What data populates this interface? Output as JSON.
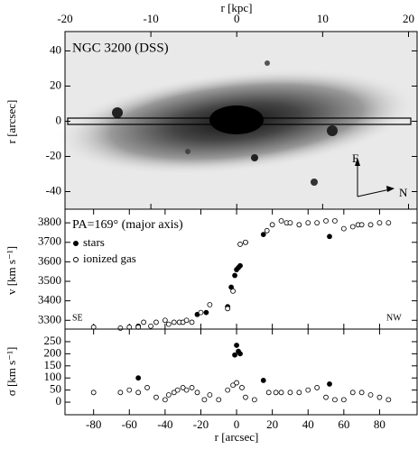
{
  "chart_data": [
    {
      "type": "image",
      "title": "NGC 3200 (DSS)",
      "x_label": "r [kpc]",
      "y_label": "r [arcsec]",
      "xlim": [
        -20,
        21
      ],
      "xticks": [
        -20,
        -10,
        0,
        10,
        20
      ],
      "ylim": [
        -50,
        51
      ],
      "yticks": [
        -40,
        -20,
        0,
        20,
        40
      ],
      "annotations": [
        "E",
        "N"
      ]
    },
    {
      "type": "scatter",
      "title": "PA=169° (major axis)",
      "y_label": "v [km s⁻¹]",
      "xlim": [
        -96,
        101
      ],
      "xticks": [
        -80,
        -60,
        -40,
        -20,
        0,
        20,
        40,
        60,
        80
      ],
      "ylim": [
        3255,
        3870
      ],
      "yticks": [
        3300,
        3400,
        3500,
        3600,
        3700,
        3800
      ],
      "annotations": [
        "SE",
        "NW"
      ],
      "series": [
        {
          "name": "stars",
          "color": "#000000",
          "filled": true,
          "x": [
            -55,
            -22,
            -17,
            -5,
            -3,
            -1,
            0,
            1,
            2,
            5,
            15,
            52
          ],
          "values": [
            3270,
            3330,
            3340,
            3370,
            3470,
            3530,
            3560,
            3570,
            3580,
            3700,
            3740,
            3730
          ]
        },
        {
          "name": "ionized gas",
          "color": "#000000",
          "filled": false,
          "x": [
            -80,
            -65,
            -60,
            -55,
            -52,
            -48,
            -45,
            -40,
            -38,
            -35,
            -32,
            -30,
            -28,
            -25,
            -20,
            -15,
            -5,
            -2,
            2,
            5,
            17,
            20,
            25,
            28,
            30,
            35,
            40,
            45,
            50,
            55,
            60,
            65,
            68,
            70,
            75,
            80,
            85
          ],
          "values": [
            3265,
            3260,
            3265,
            3265,
            3290,
            3270,
            3290,
            3300,
            3280,
            3290,
            3290,
            3290,
            3300,
            3290,
            3340,
            3380,
            3360,
            3450,
            3690,
            3700,
            3760,
            3790,
            3810,
            3800,
            3800,
            3790,
            3800,
            3800,
            3810,
            3810,
            3770,
            3780,
            3790,
            3790,
            3790,
            3800,
            3800
          ]
        }
      ]
    },
    {
      "type": "scatter",
      "x_label": "r [arcsec]",
      "y_label": "σ [km s⁻¹]",
      "xlim": [
        -96,
        101
      ],
      "xticks": [
        -80,
        -60,
        -40,
        -20,
        0,
        20,
        40,
        60,
        80
      ],
      "ylim": [
        -52,
        302
      ],
      "yticks": [
        0,
        50,
        100,
        150,
        200,
        250
      ],
      "series": [
        {
          "name": "stars",
          "color": "#000000",
          "filled": true,
          "x": [
            -55,
            -1,
            0,
            1,
            2,
            15,
            52
          ],
          "values": [
            100,
            195,
            235,
            210,
            200,
            90,
            75
          ]
        },
        {
          "name": "ionized gas",
          "color": "#000000",
          "filled": false,
          "x": [
            -80,
            -65,
            -60,
            -55,
            -50,
            -45,
            -40,
            -38,
            -35,
            -33,
            -30,
            -28,
            -25,
            -22,
            -18,
            -15,
            -10,
            -5,
            -2,
            0,
            3,
            5,
            10,
            18,
            22,
            25,
            30,
            35,
            40,
            45,
            50,
            55,
            60,
            65,
            70,
            75,
            80,
            85
          ],
          "values": [
            40,
            40,
            50,
            40,
            60,
            20,
            10,
            30,
            40,
            50,
            60,
            50,
            60,
            40,
            10,
            30,
            10,
            50,
            70,
            80,
            60,
            20,
            10,
            40,
            40,
            40,
            40,
            40,
            50,
            60,
            20,
            10,
            10,
            40,
            40,
            30,
            20,
            10
          ]
        }
      ]
    }
  ]
}
